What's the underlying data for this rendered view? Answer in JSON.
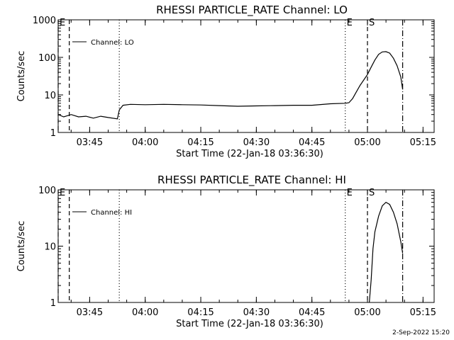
{
  "chart_data": [
    {
      "type": "line",
      "title": "RHESSI PARTICLE_RATE Channel: LO",
      "xlabel": "Start Time (22-Jan-18 03:36:30)",
      "ylabel": "Counts/sec",
      "y_scale": "log",
      "ylim": [
        1,
        1000
      ],
      "xlim": [
        "03:36:30",
        "05:18:00"
      ],
      "x_ticks": [
        "03:45",
        "04:00",
        "04:15",
        "04:30",
        "04:45",
        "05:00",
        "05:15"
      ],
      "y_ticks": [
        "1",
        "10",
        "100",
        "1000"
      ],
      "legend": {
        "position": "top-left",
        "entries": [
          "Channel: LO"
        ]
      },
      "markers": [
        {
          "label": "E",
          "time": "03:36:30",
          "style": "dashed"
        },
        {
          "label": "",
          "time": "03:39:30",
          "style": "dashed"
        },
        {
          "label": "",
          "time": "03:53:00",
          "style": "dotted"
        },
        {
          "label": "E",
          "time": "04:54:00",
          "style": "dotted"
        },
        {
          "label": "S",
          "time": "05:00:00",
          "style": "dashed"
        },
        {
          "label": "",
          "time": "05:09:30",
          "style": "dash-dot"
        }
      ],
      "series": [
        {
          "name": "Channel: LO",
          "points": [
            [
              "03:36:30",
              3
            ],
            [
              "03:38:00",
              2.6
            ],
            [
              "03:40:00",
              3
            ],
            [
              "03:42:00",
              2.6
            ],
            [
              "03:44:00",
              2.7
            ],
            [
              "03:46:00",
              2.4
            ],
            [
              "03:48:00",
              2.7
            ],
            [
              "03:50:00",
              2.5
            ],
            [
              "03:52:30",
              2.3
            ],
            [
              "03:53:00",
              4
            ],
            [
              "03:54:00",
              5.3
            ],
            [
              "03:56:00",
              5.6
            ],
            [
              "04:00:00",
              5.5
            ],
            [
              "04:05:00",
              5.6
            ],
            [
              "04:10:00",
              5.5
            ],
            [
              "04:15:00",
              5.4
            ],
            [
              "04:20:00",
              5.2
            ],
            [
              "04:25:00",
              5.0
            ],
            [
              "04:30:00",
              5.1
            ],
            [
              "04:35:00",
              5.2
            ],
            [
              "04:40:00",
              5.3
            ],
            [
              "04:45:00",
              5.3
            ],
            [
              "04:50:00",
              5.8
            ],
            [
              "04:54:00",
              6.0
            ],
            [
              "04:55:00",
              6.2
            ],
            [
              "04:56:00",
              8
            ],
            [
              "04:57:00",
              12
            ],
            [
              "04:58:00",
              18
            ],
            [
              "04:59:00",
              25
            ],
            [
              "05:00:00",
              35
            ],
            [
              "05:01:00",
              55
            ],
            [
              "05:02:00",
              85
            ],
            [
              "05:03:00",
              120
            ],
            [
              "05:04:00",
              140
            ],
            [
              "05:05:00",
              142
            ],
            [
              "05:06:00",
              130
            ],
            [
              "05:07:00",
              95
            ],
            [
              "05:08:00",
              60
            ],
            [
              "05:09:00",
              30
            ],
            [
              "05:09:30",
              14
            ]
          ]
        }
      ]
    },
    {
      "type": "line",
      "title": "RHESSI PARTICLE_RATE Channel: HI",
      "xlabel": "Start Time (22-Jan-18 03:36:30)",
      "ylabel": "Counts/sec",
      "y_scale": "log",
      "ylim": [
        1,
        100
      ],
      "xlim": [
        "03:36:30",
        "05:18:00"
      ],
      "x_ticks": [
        "03:45",
        "04:00",
        "04:15",
        "04:30",
        "04:45",
        "05:00",
        "05:15"
      ],
      "y_ticks": [
        "1",
        "10",
        "100"
      ],
      "legend": {
        "position": "top-left",
        "entries": [
          "Channel: HI"
        ]
      },
      "markers": [
        {
          "label": "E",
          "time": "03:36:30",
          "style": "dashed"
        },
        {
          "label": "",
          "time": "03:39:30",
          "style": "dashed"
        },
        {
          "label": "",
          "time": "03:53:00",
          "style": "dotted"
        },
        {
          "label": "E",
          "time": "04:54:00",
          "style": "dotted"
        },
        {
          "label": "S",
          "time": "05:00:00",
          "style": "dashed"
        },
        {
          "label": "",
          "time": "05:09:30",
          "style": "dash-dot"
        }
      ],
      "series": [
        {
          "name": "Channel: HI",
          "points": [
            [
              "05:00:30",
              1
            ],
            [
              "05:01:00",
              2.5
            ],
            [
              "05:01:30",
              9
            ],
            [
              "05:02:00",
              18
            ],
            [
              "05:03:00",
              34
            ],
            [
              "05:04:00",
              52
            ],
            [
              "05:05:00",
              60
            ],
            [
              "05:06:00",
              55
            ],
            [
              "05:07:00",
              40
            ],
            [
              "05:08:00",
              25
            ],
            [
              "05:09:00",
              12
            ],
            [
              "05:09:30",
              7.5
            ]
          ]
        }
      ]
    }
  ],
  "footer": {
    "timestamp": "2-Sep-2022 15:20"
  }
}
